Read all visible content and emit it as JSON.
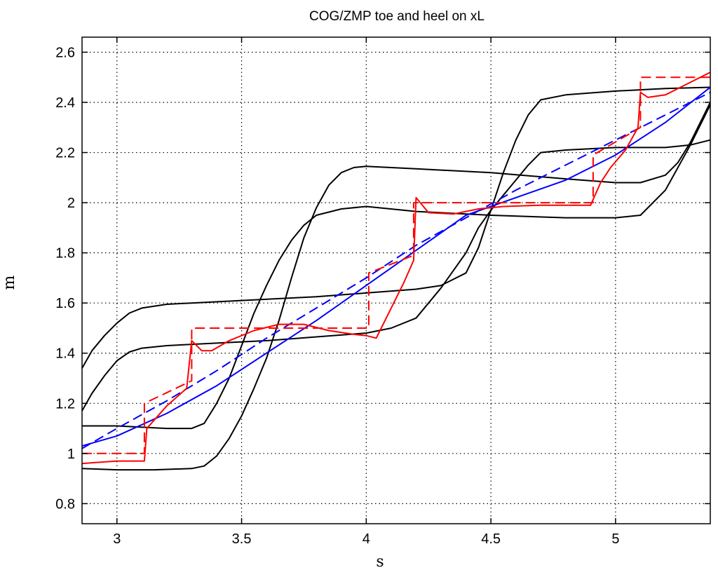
{
  "chart_data": {
    "type": "line",
    "title": "COG/ZMP toe and heel on xL",
    "xlabel": "s",
    "ylabel": "m",
    "xlim": [
      2.86,
      5.38
    ],
    "ylim": [
      0.72,
      2.66
    ],
    "x_ticks": [
      3,
      3.5,
      4,
      4.5,
      5
    ],
    "x_tick_labels": [
      "3",
      "3.5",
      "4",
      "4.5",
      "5"
    ],
    "y_ticks": [
      0.8,
      1.0,
      1.2,
      1.4,
      1.6,
      1.8,
      2.0,
      2.2,
      2.4,
      2.6
    ],
    "y_tick_labels": [
      "0.8",
      "1",
      "1.2",
      "1.4",
      "1.6",
      "1.8",
      "2",
      "2.2",
      "2.4",
      "2.6"
    ],
    "grid": true,
    "legend": "none",
    "colors": {
      "black": "#000000",
      "blue": "#0000ff",
      "red": "#ff0000"
    },
    "series": [
      {
        "color": "#000000",
        "style": "solid",
        "points": [
          [
            2.86,
            1.34
          ],
          [
            2.9,
            1.41
          ],
          [
            2.95,
            1.47
          ],
          [
            3.0,
            1.52
          ],
          [
            3.05,
            1.56
          ],
          [
            3.1,
            1.58
          ],
          [
            3.2,
            1.595
          ],
          [
            3.3,
            1.6
          ],
          [
            3.5,
            1.61
          ],
          [
            3.8,
            1.625
          ],
          [
            4.0,
            1.64
          ],
          [
            4.2,
            1.655
          ],
          [
            4.3,
            1.67
          ],
          [
            4.4,
            1.72
          ],
          [
            4.45,
            1.82
          ],
          [
            4.5,
            1.97
          ],
          [
            4.55,
            2.12
          ],
          [
            4.6,
            2.25
          ],
          [
            4.65,
            2.35
          ],
          [
            4.7,
            2.41
          ],
          [
            4.8,
            2.43
          ],
          [
            5.0,
            2.445
          ],
          [
            5.2,
            2.455
          ],
          [
            5.38,
            2.46
          ]
        ]
      },
      {
        "color": "#000000",
        "style": "solid",
        "points": [
          [
            2.86,
            1.17
          ],
          [
            2.9,
            1.24
          ],
          [
            2.95,
            1.31
          ],
          [
            3.0,
            1.37
          ],
          [
            3.05,
            1.405
          ],
          [
            3.1,
            1.42
          ],
          [
            3.2,
            1.43
          ],
          [
            3.4,
            1.44
          ],
          [
            3.6,
            1.45
          ],
          [
            3.8,
            1.465
          ],
          [
            4.0,
            1.48
          ],
          [
            4.1,
            1.5
          ],
          [
            4.2,
            1.54
          ],
          [
            4.3,
            1.66
          ],
          [
            4.4,
            1.8
          ],
          [
            4.45,
            1.9
          ],
          [
            4.5,
            1.97
          ],
          [
            4.6,
            2.09
          ],
          [
            4.65,
            2.15
          ],
          [
            4.7,
            2.2
          ],
          [
            4.8,
            2.21
          ],
          [
            5.0,
            2.22
          ],
          [
            5.2,
            2.22
          ],
          [
            5.3,
            2.23
          ],
          [
            5.38,
            2.25
          ]
        ]
      },
      {
        "color": "#000000",
        "style": "solid",
        "points": [
          [
            2.86,
            1.11
          ],
          [
            3.0,
            1.11
          ],
          [
            3.2,
            1.1
          ],
          [
            3.3,
            1.1
          ],
          [
            3.35,
            1.12
          ],
          [
            3.4,
            1.2
          ],
          [
            3.45,
            1.3
          ],
          [
            3.5,
            1.43
          ],
          [
            3.55,
            1.56
          ],
          [
            3.6,
            1.67
          ],
          [
            3.65,
            1.77
          ],
          [
            3.7,
            1.85
          ],
          [
            3.75,
            1.91
          ],
          [
            3.8,
            1.95
          ],
          [
            3.9,
            1.975
          ],
          [
            4.0,
            1.985
          ],
          [
            4.2,
            1.965
          ],
          [
            4.5,
            1.95
          ],
          [
            4.8,
            1.94
          ],
          [
            5.0,
            1.94
          ],
          [
            5.1,
            1.95
          ],
          [
            5.2,
            2.05
          ],
          [
            5.3,
            2.23
          ],
          [
            5.38,
            2.39
          ]
        ]
      },
      {
        "color": "#000000",
        "style": "solid",
        "points": [
          [
            2.86,
            0.94
          ],
          [
            3.0,
            0.935
          ],
          [
            3.15,
            0.935
          ],
          [
            3.3,
            0.94
          ],
          [
            3.35,
            0.95
          ],
          [
            3.4,
            0.99
          ],
          [
            3.45,
            1.06
          ],
          [
            3.5,
            1.15
          ],
          [
            3.55,
            1.26
          ],
          [
            3.6,
            1.38
          ],
          [
            3.65,
            1.53
          ],
          [
            3.7,
            1.7
          ],
          [
            3.75,
            1.86
          ],
          [
            3.8,
            1.98
          ],
          [
            3.85,
            2.07
          ],
          [
            3.9,
            2.12
          ],
          [
            3.95,
            2.14
          ],
          [
            4.0,
            2.145
          ],
          [
            4.2,
            2.135
          ],
          [
            4.5,
            2.12
          ],
          [
            4.8,
            2.095
          ],
          [
            5.0,
            2.08
          ],
          [
            5.1,
            2.08
          ],
          [
            5.2,
            2.11
          ],
          [
            5.25,
            2.16
          ],
          [
            5.3,
            2.24
          ],
          [
            5.38,
            2.4
          ]
        ]
      },
      {
        "color": "#0000ff",
        "style": "solid",
        "points": [
          [
            2.86,
            1.03
          ],
          [
            3.0,
            1.07
          ],
          [
            3.2,
            1.16
          ],
          [
            3.4,
            1.27
          ],
          [
            3.6,
            1.4
          ],
          [
            3.8,
            1.53
          ],
          [
            4.0,
            1.67
          ],
          [
            4.2,
            1.81
          ],
          [
            4.4,
            1.95
          ],
          [
            4.6,
            2.02
          ],
          [
            4.8,
            2.09
          ],
          [
            5.0,
            2.19
          ],
          [
            5.2,
            2.32
          ],
          [
            5.38,
            2.46
          ]
        ]
      },
      {
        "color": "#0000ff",
        "style": "dashed",
        "points": [
          [
            2.86,
            1.02
          ],
          [
            3.0,
            1.1
          ],
          [
            3.2,
            1.21
          ],
          [
            3.4,
            1.33
          ],
          [
            3.6,
            1.46
          ],
          [
            3.8,
            1.58
          ],
          [
            4.0,
            1.7
          ],
          [
            4.2,
            1.83
          ],
          [
            4.4,
            1.94
          ],
          [
            4.6,
            2.05
          ],
          [
            4.8,
            2.15
          ],
          [
            5.0,
            2.25
          ],
          [
            5.2,
            2.35
          ],
          [
            5.38,
            2.44
          ]
        ]
      },
      {
        "color": "#ff0000",
        "style": "dashed",
        "points": [
          [
            2.86,
            1.0
          ],
          [
            3.11,
            1.0
          ],
          [
            3.11,
            1.2
          ],
          [
            3.3,
            1.29
          ],
          [
            3.3,
            1.5
          ],
          [
            4.01,
            1.5
          ],
          [
            4.01,
            1.72
          ],
          [
            4.19,
            1.79
          ],
          [
            4.19,
            2.0
          ],
          [
            4.91,
            2.0
          ],
          [
            4.91,
            2.19
          ],
          [
            5.1,
            2.3
          ],
          [
            5.1,
            2.5
          ],
          [
            5.38,
            2.5
          ]
        ]
      },
      {
        "color": "#ff0000",
        "style": "solid",
        "points": [
          [
            2.86,
            0.96
          ],
          [
            3.0,
            0.97
          ],
          [
            3.11,
            0.97
          ],
          [
            3.12,
            1.1
          ],
          [
            3.2,
            1.19
          ],
          [
            3.28,
            1.26
          ],
          [
            3.3,
            1.45
          ],
          [
            3.34,
            1.41
          ],
          [
            3.38,
            1.41
          ],
          [
            3.45,
            1.45
          ],
          [
            3.55,
            1.49
          ],
          [
            3.65,
            1.515
          ],
          [
            3.75,
            1.515
          ],
          [
            3.85,
            1.49
          ],
          [
            3.95,
            1.475
          ],
          [
            4.0,
            1.47
          ],
          [
            4.04,
            1.46
          ],
          [
            4.06,
            1.5
          ],
          [
            4.1,
            1.58
          ],
          [
            4.15,
            1.68
          ],
          [
            4.19,
            1.77
          ],
          [
            4.2,
            2.02
          ],
          [
            4.25,
            1.96
          ],
          [
            4.35,
            1.955
          ],
          [
            4.45,
            1.975
          ],
          [
            4.55,
            1.985
          ],
          [
            4.7,
            1.99
          ],
          [
            4.85,
            1.99
          ],
          [
            4.9,
            1.99
          ],
          [
            4.94,
            2.08
          ],
          [
            4.98,
            2.14
          ],
          [
            5.04,
            2.21
          ],
          [
            5.09,
            2.3
          ],
          [
            5.1,
            2.44
          ],
          [
            5.13,
            2.42
          ],
          [
            5.2,
            2.43
          ],
          [
            5.28,
            2.47
          ],
          [
            5.38,
            2.52
          ]
        ]
      }
    ]
  }
}
